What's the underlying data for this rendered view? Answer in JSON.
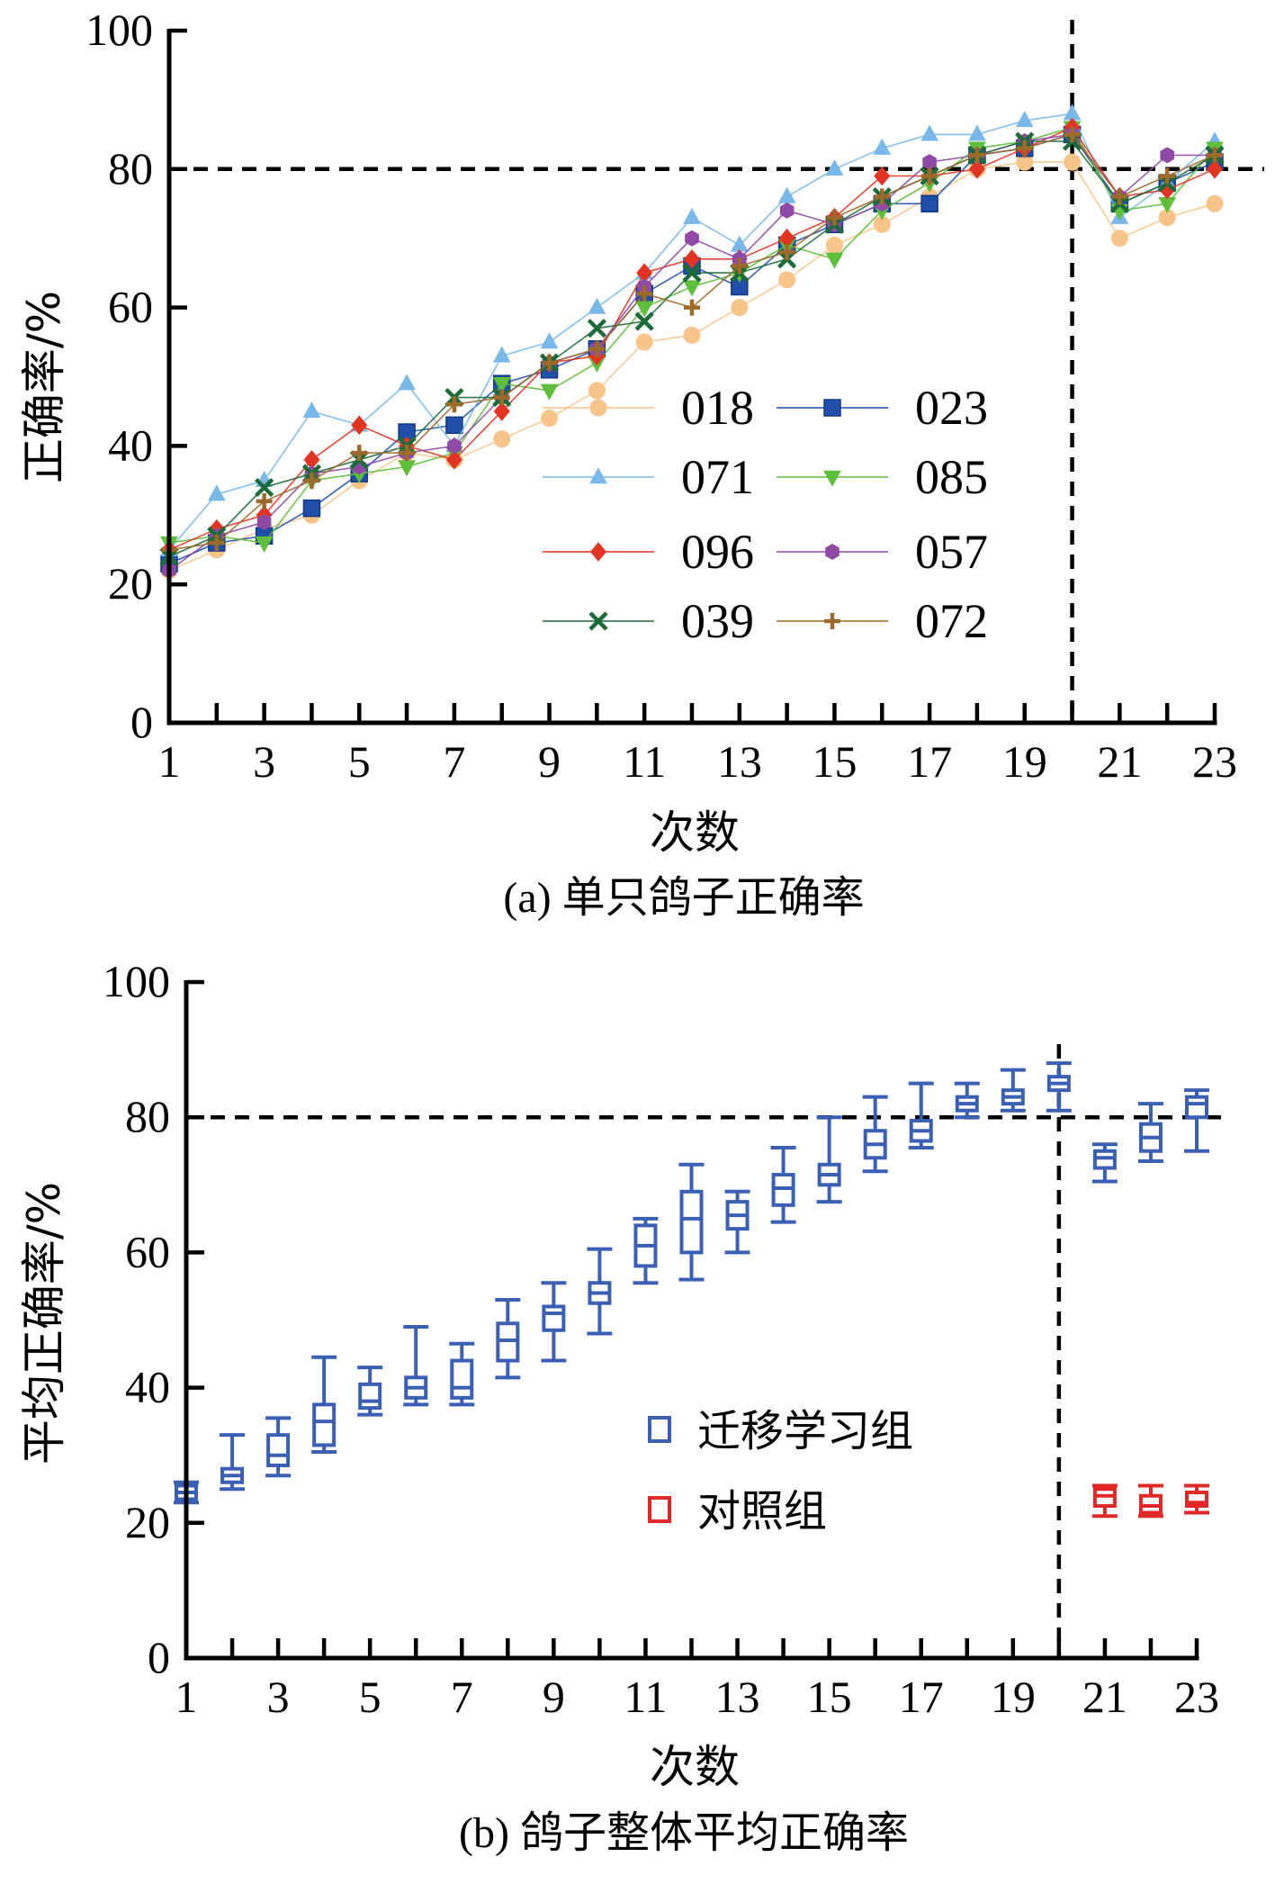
{
  "colors": {
    "s018": "#F7C48A",
    "s023": "#1F4FA8",
    "s071": "#79B8E8",
    "s085": "#5FBE3A",
    "s096": "#E23423",
    "s057": "#8E4AA5",
    "s039": "#1E6B3A",
    "s072": "#9E6A2C",
    "transfer": "#3B5FB5",
    "control": "#E02828"
  },
  "chart_data": [
    {
      "type": "line",
      "caption": "(a) 单只鸽子正确率",
      "xlabel": "次数",
      "ylabel": "正确率/%",
      "xlim": [
        1,
        23
      ],
      "ylim": [
        0,
        100
      ],
      "xticks": [
        "1",
        "3",
        "5",
        "7",
        "9",
        "11",
        "13",
        "15",
        "17",
        "19",
        "21",
        "23"
      ],
      "yticks": [
        "0",
        "20",
        "40",
        "60",
        "80",
        "100"
      ],
      "reference_hline": 80,
      "reference_vline": 20,
      "legend": "center-right",
      "x": [
        1,
        2,
        3,
        4,
        5,
        6,
        7,
        8,
        9,
        10,
        11,
        12,
        13,
        14,
        15,
        16,
        17,
        18,
        19,
        20,
        21,
        22,
        23
      ],
      "series": [
        {
          "name": "018",
          "key": "s018",
          "marker": "circle",
          "values": [
            22,
            25,
            28,
            30,
            35,
            39,
            38,
            41,
            44,
            48,
            55,
            56,
            60,
            64,
            69,
            72,
            76,
            80,
            81,
            81,
            70,
            73,
            75
          ]
        },
        {
          "name": "023",
          "key": "s023",
          "marker": "square",
          "values": [
            23,
            26,
            27,
            31,
            36,
            42,
            43,
            49,
            51,
            54,
            62,
            66,
            63,
            69,
            72,
            75,
            75,
            82,
            83,
            85,
            75,
            78,
            81
          ]
        },
        {
          "name": "071",
          "key": "s071",
          "marker": "triangle",
          "values": [
            25,
            33,
            35,
            45,
            43,
            49,
            40,
            53,
            55,
            60,
            65,
            73,
            69,
            76,
            80,
            83,
            85,
            85,
            87,
            88,
            73,
            78,
            84
          ]
        },
        {
          "name": "085",
          "key": "s085",
          "marker": "triangle-down",
          "values": [
            26,
            27,
            26,
            35,
            36,
            37,
            39,
            49,
            48,
            52,
            60,
            63,
            65,
            69,
            67,
            74,
            78,
            83,
            84,
            86,
            74,
            75,
            83
          ]
        },
        {
          "name": "096",
          "key": "s096",
          "marker": "diamond",
          "values": [
            25,
            28,
            30,
            38,
            43,
            40,
            38,
            45,
            52,
            53,
            65,
            67,
            67,
            70,
            73,
            79,
            79,
            80,
            83,
            86,
            76,
            77,
            80
          ]
        },
        {
          "name": "057",
          "key": "s057",
          "marker": "hexagon",
          "values": [
            22,
            27,
            29,
            36,
            37,
            39,
            40,
            47,
            52,
            54,
            63,
            70,
            67,
            74,
            72,
            75,
            81,
            82,
            84,
            85,
            76,
            82,
            82
          ]
        },
        {
          "name": "039",
          "key": "s039",
          "marker": "x",
          "values": [
            24,
            27,
            34,
            36,
            38,
            40,
            47,
            47,
            52,
            57,
            58,
            65,
            65,
            67,
            72,
            76,
            79,
            82,
            84,
            84,
            75,
            78,
            82
          ]
        },
        {
          "name": "072",
          "key": "s072",
          "marker": "plus",
          "values": [
            25,
            26,
            32,
            35,
            39,
            39,
            46,
            47,
            52,
            54,
            62,
            60,
            66,
            68,
            73,
            76,
            79,
            82,
            83,
            85,
            76,
            79,
            82
          ]
        }
      ]
    },
    {
      "type": "box",
      "caption": "(b) 鸽子整体平均正确率",
      "xlabel": "次数",
      "ylabel": "平均正确率/%",
      "xlim": [
        1,
        23
      ],
      "ylim": [
        0,
        100
      ],
      "xticks": [
        "1",
        "3",
        "5",
        "7",
        "9",
        "11",
        "13",
        "15",
        "17",
        "19",
        "21",
        "23"
      ],
      "yticks": [
        "0",
        "20",
        "40",
        "60",
        "80",
        "100"
      ],
      "reference_hline": 80,
      "reference_vline": 20,
      "legend": "center-right",
      "series": [
        {
          "name": "迁移学习组",
          "key": "transfer",
          "boxes": [
            {
              "x": 1,
              "min": 23,
              "q1": 23.5,
              "median": 24.5,
              "q3": 25.5,
              "max": 26
            },
            {
              "x": 2,
              "min": 25,
              "q1": 26,
              "median": 27,
              "q3": 28,
              "max": 33
            },
            {
              "x": 3,
              "min": 27,
              "q1": 28.5,
              "median": 30,
              "q3": 33,
              "max": 35.5
            },
            {
              "x": 4,
              "min": 30.5,
              "q1": 31.5,
              "median": 35,
              "q3": 37.5,
              "max": 44.5
            },
            {
              "x": 5,
              "min": 36,
              "q1": 37,
              "median": 38,
              "q3": 40.5,
              "max": 43
            },
            {
              "x": 6,
              "min": 37.5,
              "q1": 38.5,
              "median": 40,
              "q3": 41.5,
              "max": 49
            },
            {
              "x": 7,
              "min": 37.5,
              "q1": 38.5,
              "median": 40,
              "q3": 44,
              "max": 46.5
            },
            {
              "x": 8,
              "min": 41.5,
              "q1": 44,
              "median": 47,
              "q3": 49.5,
              "max": 53
            },
            {
              "x": 9,
              "min": 44,
              "q1": 48.5,
              "median": 51,
              "q3": 52,
              "max": 55.5
            },
            {
              "x": 10,
              "min": 48,
              "q1": 52.5,
              "median": 54,
              "q3": 55.5,
              "max": 60.5
            },
            {
              "x": 11,
              "min": 55.5,
              "q1": 58,
              "median": 61,
              "q3": 64,
              "max": 65
            },
            {
              "x": 12,
              "min": 56,
              "q1": 60,
              "median": 65,
              "q3": 69,
              "max": 73
            },
            {
              "x": 13,
              "min": 60,
              "q1": 63.5,
              "median": 65.5,
              "q3": 67.5,
              "max": 69
            },
            {
              "x": 14,
              "min": 64.5,
              "q1": 67,
              "median": 69.5,
              "q3": 71.5,
              "max": 75.5
            },
            {
              "x": 15,
              "min": 67.5,
              "q1": 70,
              "median": 71.5,
              "q3": 73,
              "max": 80
            },
            {
              "x": 16,
              "min": 72,
              "q1": 74,
              "median": 76,
              "q3": 78,
              "max": 83
            },
            {
              "x": 17,
              "min": 75.5,
              "q1": 76.5,
              "median": 78,
              "q3": 79.5,
              "max": 85
            },
            {
              "x": 18,
              "min": 80,
              "q1": 81,
              "median": 82,
              "q3": 83,
              "max": 85
            },
            {
              "x": 19,
              "min": 81,
              "q1": 82,
              "median": 83,
              "q3": 84,
              "max": 87
            },
            {
              "x": 20,
              "min": 81,
              "q1": 84,
              "median": 85,
              "q3": 86,
              "max": 88
            },
            {
              "x": 21,
              "min": 70.5,
              "q1": 72.5,
              "median": 74,
              "q3": 75,
              "max": 76
            },
            {
              "x": 22,
              "min": 73.5,
              "q1": 75,
              "median": 77,
              "q3": 79,
              "max": 82
            },
            {
              "x": 23,
              "min": 75,
              "q1": 80,
              "median": 82,
              "q3": 83,
              "max": 84
            }
          ]
        },
        {
          "name": "对照组",
          "key": "control",
          "boxes": [
            {
              "x": 21,
              "min": 21,
              "q1": 22.5,
              "median": 24,
              "q3": 25,
              "max": 25.5
            },
            {
              "x": 22,
              "min": 21,
              "q1": 21.5,
              "median": 22.5,
              "q3": 24,
              "max": 25.5
            },
            {
              "x": 23,
              "min": 21.5,
              "q1": 22.5,
              "median": 23,
              "q3": 24.5,
              "max": 25.5
            }
          ]
        }
      ]
    }
  ]
}
